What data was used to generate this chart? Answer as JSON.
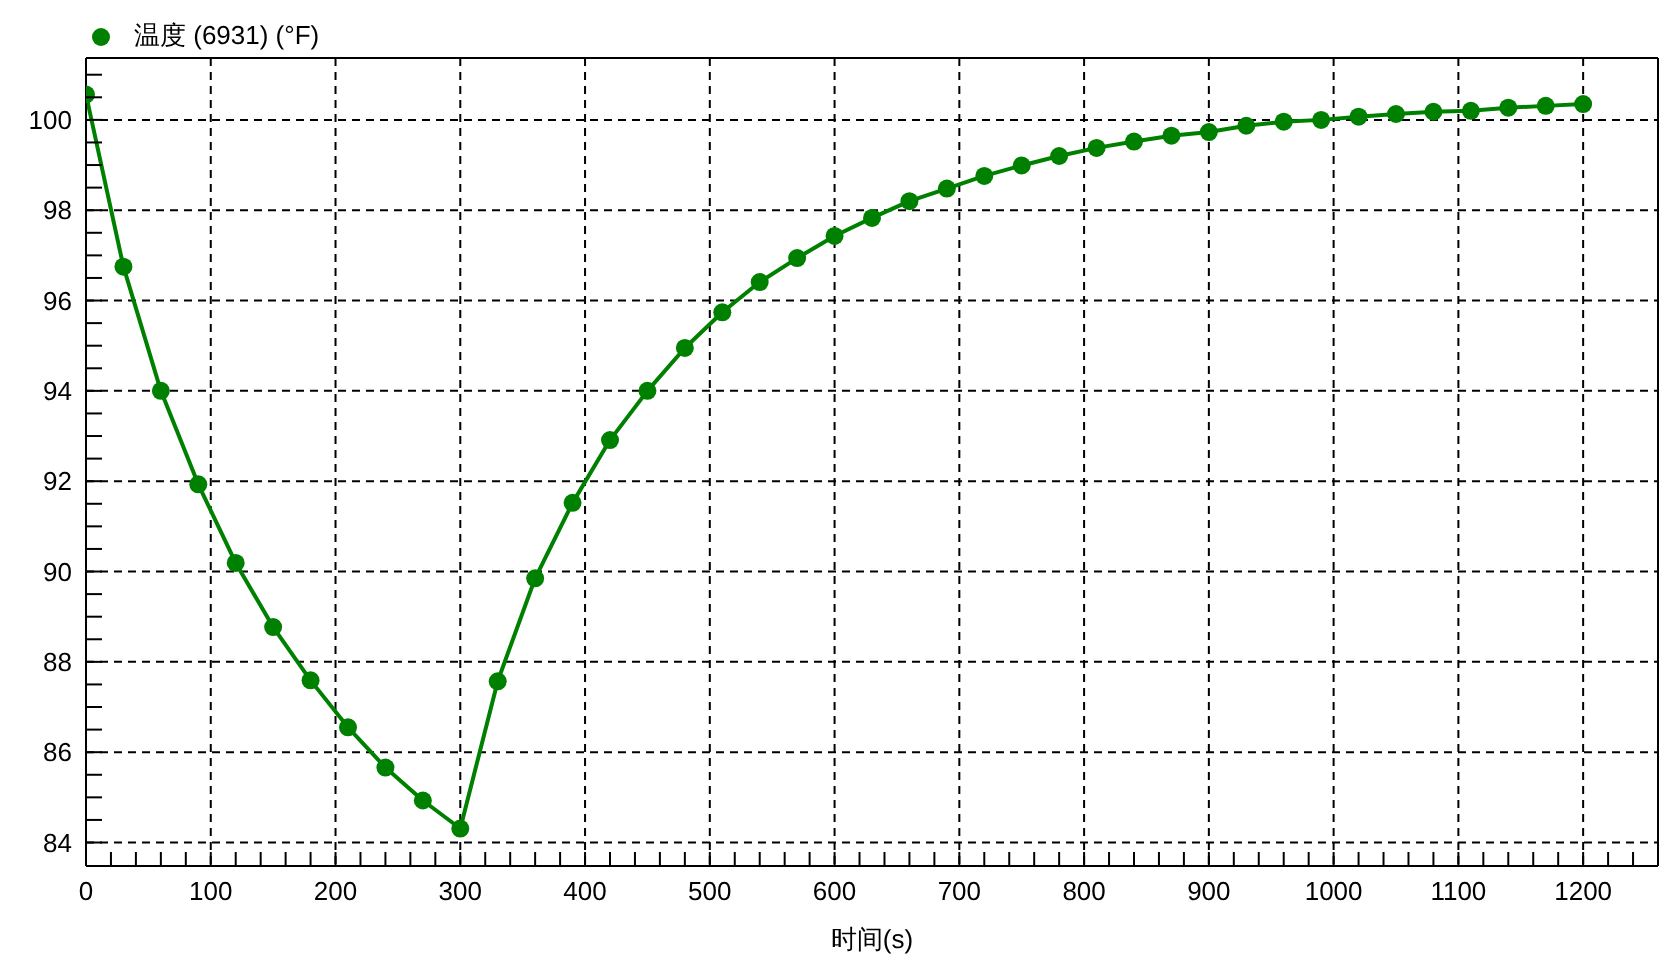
{
  "chart_data": {
    "type": "line",
    "xlabel": "时间(s)",
    "x": [
      0,
      30,
      60,
      90,
      120,
      150,
      180,
      210,
      240,
      270,
      300,
      330,
      360,
      390,
      420,
      450,
      480,
      510,
      540,
      570,
      600,
      630,
      660,
      690,
      720,
      750,
      780,
      810,
      840,
      870,
      900,
      930,
      960,
      990,
      1020,
      1050,
      1080,
      1110,
      1140,
      1170,
      1200
    ],
    "series": [
      {
        "name": "温度 (6931) (°F)",
        "color": "#008000",
        "values": [
          100.56,
          96.75,
          94.0,
          91.93,
          90.19,
          88.77,
          87.59,
          86.55,
          85.66,
          84.93,
          84.31,
          87.57,
          89.85,
          91.52,
          92.91,
          94.0,
          94.95,
          95.74,
          96.41,
          96.94,
          97.43,
          97.83,
          98.2,
          98.48,
          98.76,
          98.99,
          99.2,
          99.38,
          99.52,
          99.65,
          99.73,
          99.87,
          99.96,
          100.0,
          100.07,
          100.13,
          100.18,
          100.2,
          100.27,
          100.31,
          100.35
        ]
      }
    ],
    "xlim": [
      0,
      1260
    ],
    "ylim": [
      83.48,
      101.37
    ],
    "xticks": [
      0,
      {
        "value": 20,
        "label": null
      },
      {
        "value": 40,
        "label": null
      },
      {
        "value": 60,
        "label": null
      },
      {
        "value": 80,
        "label": null
      },
      100,
      {
        "value": 120,
        "label": null
      },
      {
        "value": 140,
        "label": null
      },
      {
        "value": 160,
        "label": null
      },
      {
        "value": 180,
        "label": null
      },
      200,
      {
        "value": 220,
        "label": null
      },
      {
        "value": 240,
        "label": null
      },
      {
        "value": 260,
        "label": null
      },
      {
        "value": 280,
        "label": null
      },
      300,
      {
        "value": 320,
        "label": null
      },
      {
        "value": 340,
        "label": null
      },
      {
        "value": 360,
        "label": null
      },
      {
        "value": 380,
        "label": null
      },
      400,
      {
        "value": 420,
        "label": null
      },
      {
        "value": 440,
        "label": null
      },
      {
        "value": 460,
        "label": null
      },
      {
        "value": 480,
        "label": null
      },
      500,
      {
        "value": 520,
        "label": null
      },
      {
        "value": 540,
        "label": null
      },
      {
        "value": 560,
        "label": null
      },
      {
        "value": 580,
        "label": null
      },
      600,
      {
        "value": 620,
        "label": null
      },
      {
        "value": 640,
        "label": null
      },
      {
        "value": 660,
        "label": null
      },
      {
        "value": 680,
        "label": null
      },
      700,
      {
        "value": 720,
        "label": null
      },
      {
        "value": 740,
        "label": null
      },
      {
        "value": 760,
        "label": null
      },
      {
        "value": 780,
        "label": null
      },
      800,
      {
        "value": 820,
        "label": null
      },
      {
        "value": 840,
        "label": null
      },
      {
        "value": 860,
        "label": null
      },
      {
        "value": 880,
        "label": null
      },
      900,
      {
        "value": 920,
        "label": null
      },
      {
        "value": 940,
        "label": null
      },
      {
        "value": 960,
        "label": null
      },
      {
        "value": 980,
        "label": null
      },
      1000,
      {
        "value": 1020,
        "label": null
      },
      {
        "value": 1040,
        "label": null
      },
      {
        "value": 1060,
        "label": null
      },
      {
        "value": 1080,
        "label": null
      },
      1100,
      {
        "value": 1120,
        "label": null
      },
      {
        "value": 1140,
        "label": null
      },
      {
        "value": 1160,
        "label": null
      },
      {
        "value": 1180,
        "label": null
      },
      1200,
      {
        "value": 1220,
        "label": null
      },
      {
        "value": 1240,
        "label": null
      }
    ],
    "yticks": [
      84,
      {
        "value": 84.5,
        "label": null
      },
      {
        "value": 85,
        "label": null
      },
      {
        "value": 85.5,
        "label": null
      },
      86,
      {
        "value": 86.5,
        "label": null
      },
      {
        "value": 87,
        "label": null
      },
      {
        "value": 87.5,
        "label": null
      },
      88,
      {
        "value": 88.5,
        "label": null
      },
      {
        "value": 89,
        "label": null
      },
      {
        "value": 89.5,
        "label": null
      },
      90,
      {
        "value": 90.5,
        "label": null
      },
      {
        "value": 91,
        "label": null
      },
      {
        "value": 91.5,
        "label": null
      },
      92,
      {
        "value": 92.5,
        "label": null
      },
      {
        "value": 93,
        "label": null
      },
      {
        "value": 93.5,
        "label": null
      },
      94,
      {
        "value": 94.5,
        "label": null
      },
      {
        "value": 95,
        "label": null
      },
      {
        "value": 95.5,
        "label": null
      },
      96,
      {
        "value": 96.5,
        "label": null
      },
      {
        "value": 97,
        "label": null
      },
      {
        "value": 97.5,
        "label": null
      },
      98,
      {
        "value": 98.5,
        "label": null
      },
      {
        "value": 99,
        "label": null
      },
      {
        "value": 99.5,
        "label": null
      },
      100,
      {
        "value": 100.5,
        "label": null
      },
      {
        "value": 101,
        "label": null
      }
    ],
    "grid": true,
    "legend": "top left",
    "marker": "circle",
    "line_style": "solid"
  }
}
